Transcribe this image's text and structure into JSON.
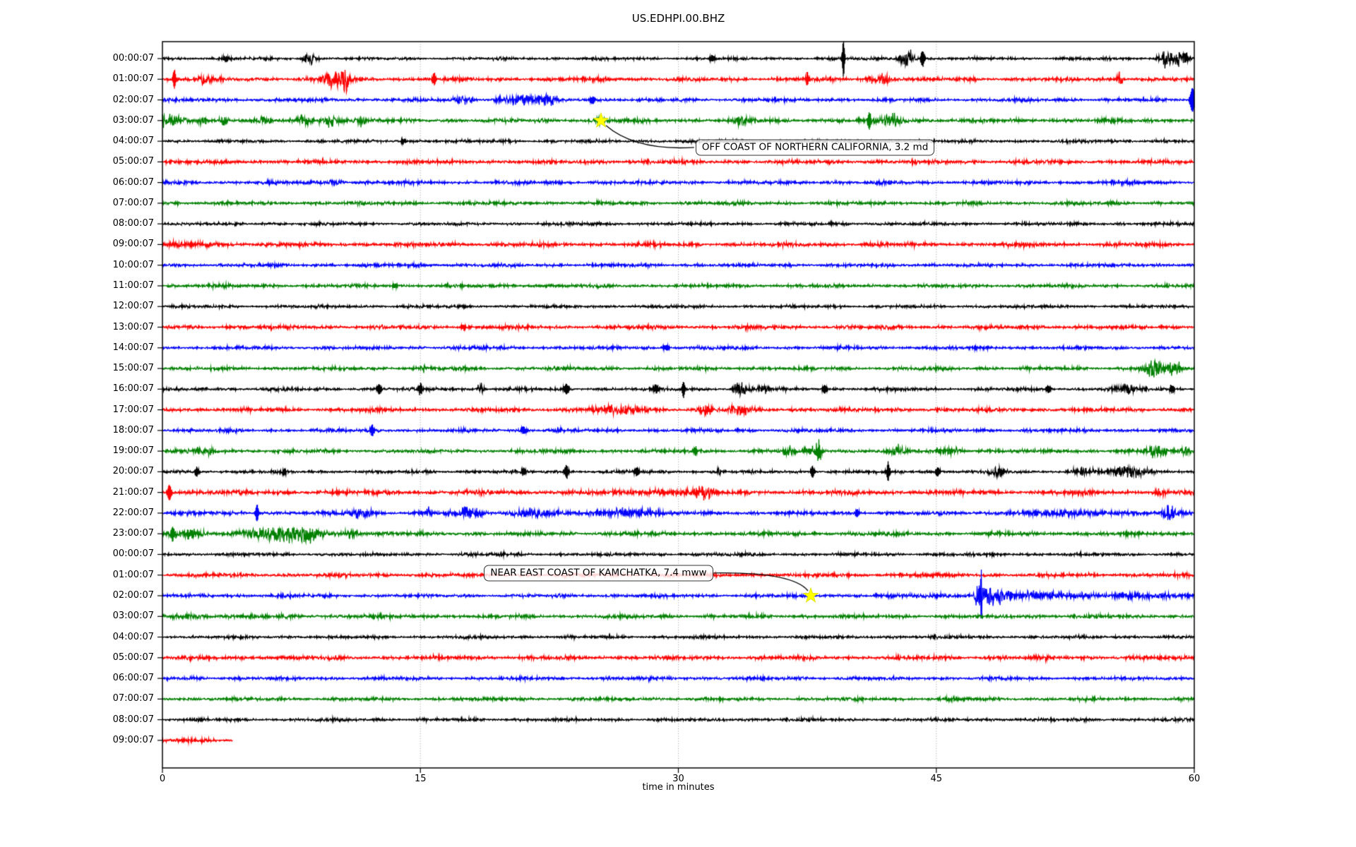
{
  "chart_data": {
    "type": "line",
    "subtype": "helicorder-seismogram",
    "title": "US.EDHPI.00.BHZ",
    "xlabel": "time in minutes",
    "xlim": [
      0,
      60
    ],
    "x_ticks": [
      "0",
      "15",
      "30",
      "45",
      "60"
    ],
    "grid_minutes": [
      15,
      30,
      45
    ],
    "grid_on": true,
    "colors": {
      "trace_cycle": [
        "#000000",
        "#ff0000",
        "#0000ff",
        "#008000"
      ],
      "grid": "#999999",
      "axis": "#000000",
      "event_marker": "#ffff00",
      "annotation_border": "#333333"
    },
    "rows": [
      {
        "label": "00:00:07",
        "amp": 2.2,
        "bursts": [
          [
            3.7,
            0.1,
            4
          ],
          [
            8.6,
            0.25,
            9
          ],
          [
            32,
            0.1,
            5
          ],
          [
            39.6,
            0.05,
            26
          ],
          [
            43.3,
            0.3,
            13
          ],
          [
            44.2,
            0.08,
            12
          ],
          [
            58.4,
            0.3,
            12
          ],
          [
            59.3,
            0.25,
            14
          ]
        ]
      },
      {
        "label": "01:00:07",
        "amp": 2.9,
        "bursts": [
          [
            0.7,
            0.06,
            14
          ],
          [
            2.3,
            0.3,
            6
          ],
          [
            9.9,
            0.35,
            17
          ],
          [
            10.6,
            0.15,
            22
          ],
          [
            15.8,
            0.08,
            8
          ],
          [
            37.5,
            0.06,
            10
          ],
          [
            41.8,
            0.5,
            6
          ],
          [
            55.7,
            0.12,
            9
          ]
        ]
      },
      {
        "label": "02:00:07",
        "amp": 2.6,
        "bursts": [
          [
            17.5,
            0.4,
            5
          ],
          [
            20.8,
            0.8,
            5
          ],
          [
            22.5,
            0.4,
            6
          ],
          [
            25,
            0.08,
            5
          ],
          [
            59.9,
            0.1,
            18
          ]
        ]
      },
      {
        "label": "03:00:07",
        "amp": 3.1,
        "bursts": [
          [
            0.0,
            0.7,
            15,
            "quake"
          ],
          [
            2.3,
            0.15,
            6
          ],
          [
            3.6,
            0.15,
            7
          ],
          [
            5.8,
            0.2,
            5
          ],
          [
            8.2,
            0.25,
            7
          ],
          [
            9.8,
            0.4,
            8
          ],
          [
            11.5,
            0.2,
            6
          ],
          [
            25.5,
            0.15,
            4
          ],
          [
            33.8,
            0.3,
            5
          ],
          [
            41.1,
            0.06,
            14
          ],
          [
            42.4,
            0.4,
            9
          ]
        ]
      },
      {
        "label": "04:00:07",
        "amp": 2.4,
        "bursts": [
          [
            14,
            0.1,
            3
          ]
        ]
      },
      {
        "label": "05:00:07",
        "amp": 3.0,
        "bursts": []
      },
      {
        "label": "06:00:07",
        "amp": 2.7,
        "bursts": [
          [
            10,
            0.3,
            3
          ]
        ]
      },
      {
        "label": "07:00:07",
        "amp": 2.7,
        "bursts": []
      },
      {
        "label": "08:00:07",
        "amp": 2.4,
        "bursts": []
      },
      {
        "label": "09:00:07",
        "amp": 3.1,
        "bursts": [
          [
            2,
            1.5,
            1.5
          ]
        ]
      },
      {
        "label": "10:00:07",
        "amp": 2.6,
        "bursts": []
      },
      {
        "label": "11:00:07",
        "amp": 2.6,
        "bursts": [
          [
            13.5,
            0.1,
            3
          ]
        ]
      },
      {
        "label": "12:00:07",
        "amp": 2.3,
        "bursts": []
      },
      {
        "label": "13:00:07",
        "amp": 2.9,
        "bursts": [
          [
            17.5,
            0.1,
            4
          ]
        ]
      },
      {
        "label": "14:00:07",
        "amp": 2.6,
        "bursts": [
          [
            29.3,
            0.1,
            4
          ]
        ]
      },
      {
        "label": "15:00:07",
        "amp": 2.7,
        "bursts": [
          [
            15.2,
            0.15,
            4
          ],
          [
            57.6,
            0.35,
            13
          ],
          [
            58.8,
            0.3,
            9
          ]
        ]
      },
      {
        "label": "16:00:07",
        "amp": 2.5,
        "bursts": [
          [
            12.6,
            0.08,
            8
          ],
          [
            15,
            0.08,
            7
          ],
          [
            18.5,
            0.12,
            10
          ],
          [
            23.5,
            0.1,
            8
          ],
          [
            28.7,
            0.1,
            6
          ],
          [
            30.3,
            0.06,
            12
          ],
          [
            33.6,
            0.3,
            8
          ],
          [
            35,
            0.2,
            9
          ],
          [
            38.5,
            0.1,
            6
          ],
          [
            51.5,
            0.1,
            5
          ],
          [
            56,
            0.5,
            5
          ],
          [
            58.7,
            0.1,
            6
          ]
        ]
      },
      {
        "label": "17:00:07",
        "amp": 3.0,
        "bursts": [
          [
            26.5,
            1.2,
            4
          ],
          [
            31.6,
            0.3,
            7
          ],
          [
            33.5,
            0.4,
            7
          ]
        ]
      },
      {
        "label": "18:00:07",
        "amp": 2.6,
        "bursts": [
          [
            12.2,
            0.08,
            8
          ],
          [
            21,
            0.1,
            6
          ]
        ]
      },
      {
        "label": "19:00:07",
        "amp": 2.8,
        "bursts": [
          [
            2.1,
            0.15,
            5
          ],
          [
            2.8,
            0.2,
            5
          ],
          [
            31,
            0.08,
            6
          ],
          [
            36.5,
            0.3,
            5
          ],
          [
            38,
            0.25,
            10
          ],
          [
            38.2,
            0.05,
            16
          ],
          [
            42.8,
            0.3,
            6
          ],
          [
            45.8,
            0.4,
            7
          ],
          [
            57.8,
            0.4,
            8
          ],
          [
            59.5,
            0.2,
            6
          ]
        ]
      },
      {
        "label": "20:00:07",
        "amp": 2.4,
        "bursts": [
          [
            2,
            0.08,
            7
          ],
          [
            7.1,
            0.08,
            5
          ],
          [
            21,
            0.1,
            5
          ],
          [
            23.5,
            0.07,
            10
          ],
          [
            27.6,
            0.1,
            6
          ],
          [
            32.4,
            0.15,
            5
          ],
          [
            37.8,
            0.07,
            9
          ],
          [
            42.2,
            0.05,
            14
          ],
          [
            45.1,
            0.1,
            6
          ],
          [
            48.6,
            0.3,
            6
          ],
          [
            53.5,
            0.4,
            6
          ],
          [
            56.2,
            0.8,
            7
          ]
        ]
      },
      {
        "label": "21:00:07",
        "amp": 3.4,
        "bursts": [
          [
            0.4,
            0.08,
            12
          ],
          [
            29,
            1.5,
            3
          ],
          [
            31.5,
            0.5,
            5
          ],
          [
            58,
            0.2,
            5
          ]
        ]
      },
      {
        "label": "22:00:07",
        "amp": 2.8,
        "bursts": [
          [
            5.5,
            0.06,
            13
          ],
          [
            11.6,
            0.5,
            6
          ],
          [
            15.5,
            0.15,
            6
          ],
          [
            17.8,
            0.6,
            7
          ],
          [
            21.5,
            0.8,
            5
          ],
          [
            26.8,
            1.2,
            6
          ],
          [
            40.4,
            0.08,
            6
          ],
          [
            53,
            2.5,
            3
          ],
          [
            58.6,
            0.25,
            10
          ]
        ]
      },
      {
        "label": "23:00:07",
        "amp": 3.0,
        "bursts": [
          [
            0.6,
            0.1,
            10
          ],
          [
            1.5,
            0.6,
            6
          ],
          [
            7,
            1.5,
            9
          ],
          [
            8.5,
            0.3,
            12
          ],
          [
            11,
            0.3,
            5
          ]
        ]
      },
      {
        "label": "00:00:07",
        "amp": 2.4,
        "bursts": []
      },
      {
        "label": "01:00:07",
        "amp": 2.9,
        "bursts": []
      },
      {
        "label": "02:00:07",
        "amp": 2.6,
        "bursts": [
          [
            47.3,
            1.6,
            20,
            "quake"
          ],
          [
            47.6,
            0.05,
            26
          ],
          [
            54,
            6,
            2.2
          ]
        ]
      },
      {
        "label": "03:00:07",
        "amp": 2.8,
        "bursts": [
          [
            0.5,
            4,
            2,
            "quake"
          ]
        ]
      },
      {
        "label": "04:00:07",
        "amp": 2.4,
        "bursts": []
      },
      {
        "label": "05:00:07",
        "amp": 3.0,
        "bursts": []
      },
      {
        "label": "06:00:07",
        "amp": 2.6,
        "bursts": []
      },
      {
        "label": "07:00:07",
        "amp": 2.6,
        "bursts": []
      },
      {
        "label": "08:00:07",
        "amp": 2.4,
        "bursts": []
      },
      {
        "label": "09:00:07",
        "amp": 3.0,
        "bursts": [],
        "end_minute": 4.1
      }
    ],
    "events": [
      {
        "label": "OFF COAST OF NORTHERN CALIFORNIA, 3.2 md",
        "row": 3,
        "minute": 25.5,
        "box_row": 4.3,
        "box_minute": 31.0,
        "side": "left"
      },
      {
        "label": "NEAR EAST COAST OF KAMCHATKA, 7.4 mww",
        "row": 26,
        "minute": 37.7,
        "box_row": 24.9,
        "box_minute": 18.7,
        "side": "right"
      }
    ]
  }
}
